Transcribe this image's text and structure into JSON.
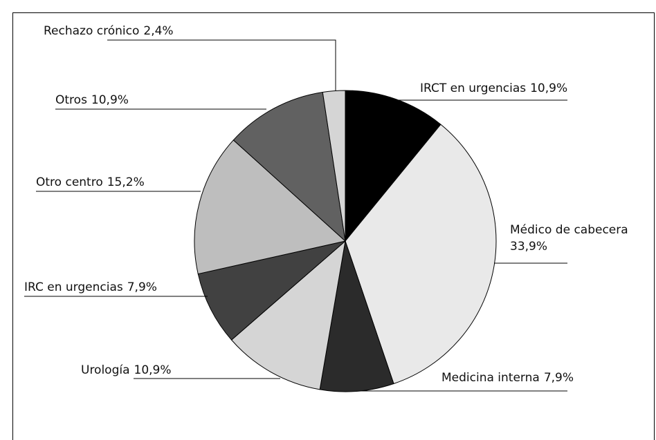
{
  "chart_data": {
    "type": "pie",
    "categories": [
      "IRCT en urgencias",
      "Médico de cabecera",
      "Medicina interna",
      "Urología",
      "IRC en urgencias",
      "Otro centro",
      "Otros",
      "Rechazo crónico"
    ],
    "values": [
      10.9,
      33.9,
      7.9,
      10.9,
      7.9,
      15.2,
      10.9,
      2.4
    ],
    "value_labels": [
      "10,9%",
      "33,9%",
      "7,9%",
      "10,9%",
      "7,9%",
      "15,2%",
      "10,9%",
      "2,4%"
    ],
    "colors": [
      "#000000",
      "#e9e9e9",
      "#2b2b2b",
      "#d5d5d5",
      "#414141",
      "#bebebe",
      "#616161",
      "#d5d5d5"
    ]
  }
}
